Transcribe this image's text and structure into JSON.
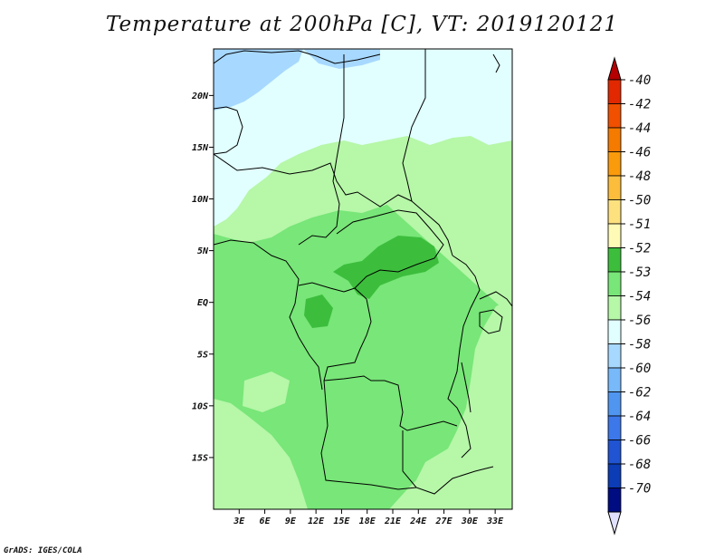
{
  "title": "Temperature at 200hPa [C], VT: 2019120121",
  "credit": "GrADS: IGES/COLA",
  "map": {
    "lat_axis": [
      {
        "label": "20N",
        "lat": 20
      },
      {
        "label": "15N",
        "lat": 15
      },
      {
        "label": "10N",
        "lat": 10
      },
      {
        "label": "5N",
        "lat": 5
      },
      {
        "label": "EQ",
        "lat": 0
      },
      {
        "label": "5S",
        "lat": -5
      },
      {
        "label": "10S",
        "lat": -10
      },
      {
        "label": "15S",
        "lat": -15
      }
    ],
    "lon_axis": [
      {
        "label": "3E",
        "lon": 3
      },
      {
        "label": "6E",
        "lon": 6
      },
      {
        "label": "9E",
        "lon": 9
      },
      {
        "label": "12E",
        "lon": 12
      },
      {
        "label": "15E",
        "lon": 15
      },
      {
        "label": "18E",
        "lon": 18
      },
      {
        "label": "21E",
        "lon": 21
      },
      {
        "label": "24E",
        "lon": 24
      },
      {
        "label": "27E",
        "lon": 27
      },
      {
        "label": "30E",
        "lon": 30
      },
      {
        "label": "33E",
        "lon": 33
      }
    ],
    "lon_range": [
      0,
      35
    ],
    "lat_range": [
      -20,
      24.5
    ]
  },
  "colorbar": {
    "levels": [
      {
        "label": "-40",
        "color": "#e12800"
      },
      {
        "label": "-42",
        "color": "#f05000"
      },
      {
        "label": "-44",
        "color": "#f57a00"
      },
      {
        "label": "-46",
        "color": "#fa9b0c"
      },
      {
        "label": "-48",
        "color": "#fcbd3c"
      },
      {
        "label": "-50",
        "color": "#fde17e"
      },
      {
        "label": "-51",
        "color": "#fffbb6"
      },
      {
        "label": "-52",
        "color": "#3cbe3c"
      },
      {
        "label": "-53",
        "color": "#78e678"
      },
      {
        "label": "-54",
        "color": "#b6f7a8"
      },
      {
        "label": "-56",
        "color": "#e1ffff"
      },
      {
        "label": "-58",
        "color": "#a7d8ff"
      },
      {
        "label": "-60",
        "color": "#78b9fa"
      },
      {
        "label": "-62",
        "color": "#5096f0"
      },
      {
        "label": "-64",
        "color": "#3c78ea"
      },
      {
        "label": "-66",
        "color": "#2054d2"
      },
      {
        "label": "-68",
        "color": "#0c3cb6"
      },
      {
        "label": "-70",
        "color": "#000c82"
      }
    ],
    "top_arrow_color": "#b40000",
    "bottom_arrow_color": "#e1e1ff"
  }
}
